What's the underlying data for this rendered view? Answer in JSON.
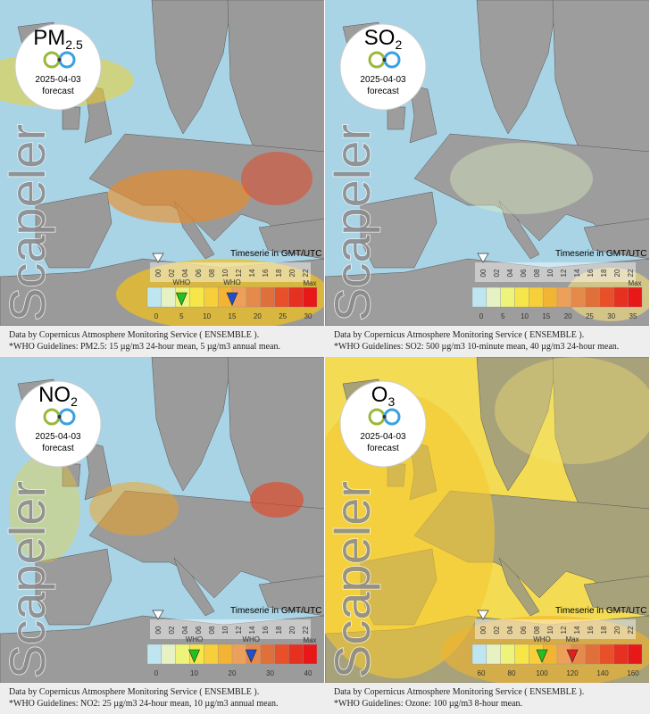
{
  "panels": [
    {
      "name": "PM",
      "sub": "2.5",
      "date": "2025-04-03",
      "status": "forecast",
      "watermark": "Scapeler",
      "timeline_label": "Timeserie in GMT/UTC",
      "hours": [
        "00",
        "02",
        "04",
        "06",
        "08",
        "10",
        "12",
        "14",
        "16",
        "18",
        "20",
        "22"
      ],
      "scale_ticks": [
        0,
        5,
        10,
        15,
        20,
        25,
        30
      ],
      "scale_max": "Max",
      "markers": [
        {
          "label": "WHO",
          "value": 5,
          "color": "#22c022"
        },
        {
          "label": "WHO",
          "value": 15,
          "color": "#1f4fd0"
        }
      ],
      "footer": [
        "Data by Copernicus Atmosphere Monitoring Service ( ENSEMBLE ).",
        "*WHO Guidelines: PM2.5: 15 µg/m3 24-hour mean, 5 µg/m3 annual mean."
      ]
    },
    {
      "name": "SO",
      "sub": "2",
      "date": "2025-04-03",
      "status": "forecast",
      "watermark": "Scapeler",
      "timeline_label": "Timeserie in GMT/UTC",
      "hours": [
        "00",
        "02",
        "04",
        "06",
        "08",
        "10",
        "12",
        "14",
        "16",
        "18",
        "20",
        "22"
      ],
      "scale_ticks": [
        0,
        5,
        10,
        15,
        20,
        25,
        30,
        35
      ],
      "scale_max": "Max",
      "markers": [],
      "footer": [
        "Data by Copernicus Atmosphere Monitoring Service ( ENSEMBLE ).",
        "*WHO Guidelines: SO2: 500 µg/m3 10-minute mean, 40 µg/m3 24-hour mean."
      ]
    },
    {
      "name": "NO",
      "sub": "2",
      "date": "2025-04-03",
      "status": "forecast",
      "watermark": "Scapeler",
      "timeline_label": "Timeserie in GMT/UTC",
      "hours": [
        "00",
        "02",
        "04",
        "06",
        "08",
        "10",
        "12",
        "14",
        "16",
        "18",
        "20",
        "22"
      ],
      "scale_ticks": [
        0,
        10,
        20,
        30,
        40
      ],
      "scale_max": "Max",
      "markers": [
        {
          "label": "WHO",
          "value": 10,
          "color": "#22c022"
        },
        {
          "label": "WHO",
          "value": 25,
          "color": "#1f4fd0"
        }
      ],
      "footer": [
        "Data by Copernicus Atmosphere Monitoring Service ( ENSEMBLE ).",
        "*WHO Guidelines: NO2: 25 µg/m3 24-hour mean, 10 µg/m3 annual mean."
      ]
    },
    {
      "name": "O",
      "sub": "3",
      "date": "2025-04-03",
      "status": "forecast",
      "watermark": "Scapeler",
      "timeline_label": "Timeserie in GMT/UTC",
      "hours": [
        "00",
        "02",
        "04",
        "06",
        "08",
        "10",
        "12",
        "14",
        "16",
        "18",
        "20",
        "22"
      ],
      "scale_ticks": [
        60,
        80,
        100,
        120,
        140,
        160
      ],
      "markers": [
        {
          "label": "WHO",
          "value": 100,
          "color": "#22c022"
        },
        {
          "label": "Max",
          "value": 120,
          "color": "#e02020"
        }
      ],
      "footer": [
        "Data by Copernicus Atmosphere Monitoring Service ( ENSEMBLE ).",
        "*WHO Guidelines: Ozone: 100 µg/m3 8-hour mean."
      ]
    }
  ]
}
